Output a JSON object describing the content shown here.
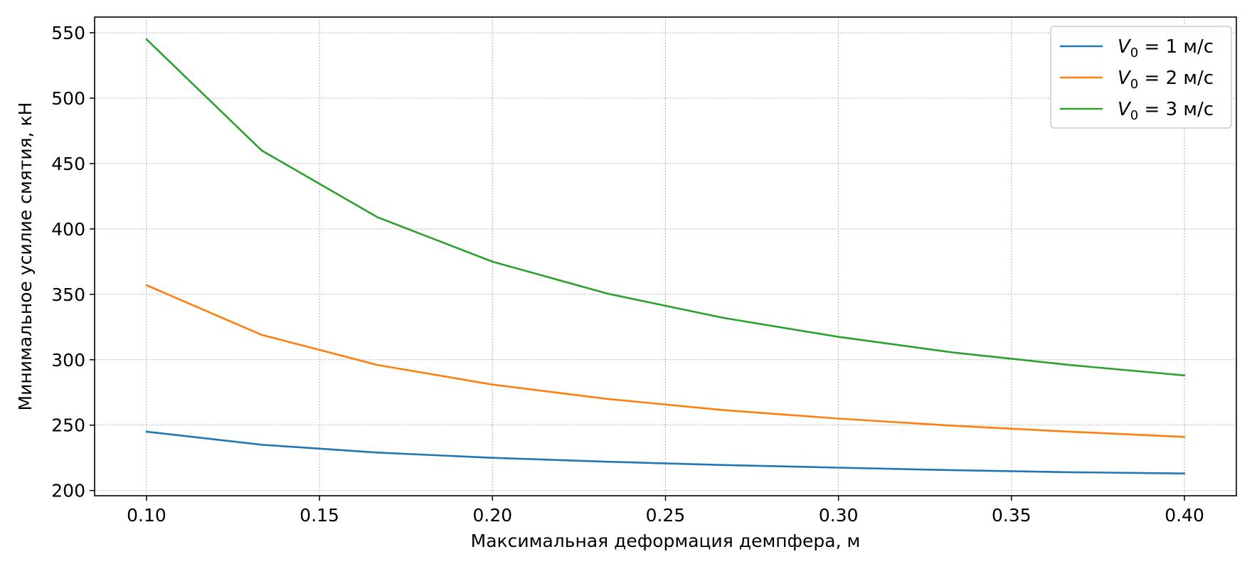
{
  "chart_data": {
    "type": "line",
    "xlabel": "Максимальная деформация демпфера, м",
    "ylabel": "Минимальное усилие смятия, кН",
    "xlim": [
      0.085,
      0.415
    ],
    "ylim": [
      196,
      562
    ],
    "xticks": [
      0.1,
      0.15,
      0.2,
      0.25,
      0.3,
      0.35,
      0.4
    ],
    "xtick_labels": [
      "0.10",
      "0.15",
      "0.20",
      "0.25",
      "0.30",
      "0.35",
      "0.40"
    ],
    "yticks": [
      200,
      250,
      300,
      350,
      400,
      450,
      500,
      550
    ],
    "ytick_labels": [
      "200",
      "250",
      "300",
      "350",
      "400",
      "450",
      "500",
      "550"
    ],
    "grid": true,
    "legend_position": "top-right",
    "x": [
      0.1,
      0.1333,
      0.1667,
      0.2,
      0.2333,
      0.2667,
      0.3,
      0.3333,
      0.3667,
      0.4
    ],
    "series": [
      {
        "name": "V0 = 1 м/с",
        "label_main": "V",
        "label_sub": "0",
        "label_rest": " = 1 м/с",
        "color": "#1f77b4",
        "values": [
          245,
          235,
          229,
          225,
          222,
          219.5,
          217.5,
          215.5,
          214,
          213
        ]
      },
      {
        "name": "V0 = 2 м/с",
        "label_main": "V",
        "label_sub": "0",
        "label_rest": " = 2 м/с",
        "color": "#ff7f0e",
        "values": [
          357,
          319,
          296,
          281,
          270,
          261.5,
          255,
          249.5,
          245,
          241
        ]
      },
      {
        "name": "V0 = 3 м/с",
        "label_main": "V",
        "label_sub": "0",
        "label_rest": " = 3 м/с",
        "color": "#2ca02c",
        "values": [
          545,
          460,
          409,
          375,
          350.5,
          332,
          317.5,
          305.5,
          296,
          288
        ]
      }
    ]
  }
}
